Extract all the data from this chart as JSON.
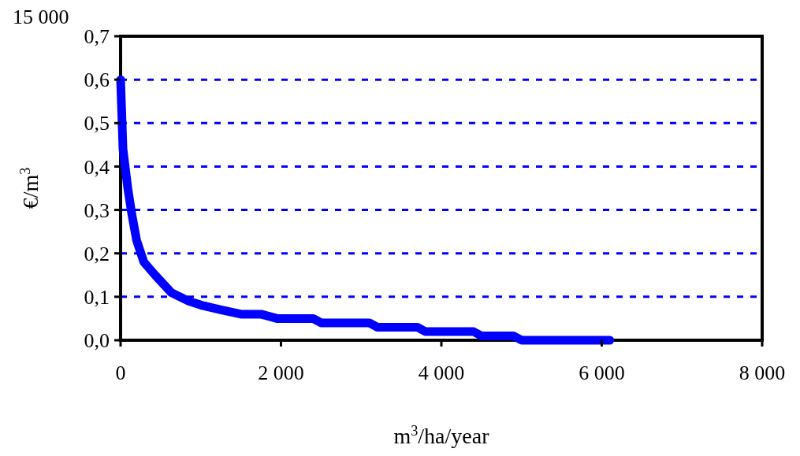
{
  "chart_data": {
    "type": "line",
    "xlabel": "m$^{3}$/ha/year",
    "ylabel": "€/m$^{3}$",
    "annotations": [
      "15 000"
    ],
    "x": [
      0,
      30,
      90,
      140,
      200,
      290,
      430,
      630,
      850,
      1020,
      1250,
      1500,
      1750,
      1850,
      1950,
      2400,
      2500,
      3100,
      3200,
      3700,
      3800,
      4400,
      4500,
      4900,
      5000,
      5600,
      6100
    ],
    "series": [
      {
        "color": "#0000ff",
        "values": [
          0.6,
          0.44,
          0.35,
          0.29,
          0.23,
          0.18,
          0.15,
          0.11,
          0.09,
          0.08,
          0.07,
          0.06,
          0.06,
          0.055,
          0.05,
          0.05,
          0.04,
          0.04,
          0.03,
          0.03,
          0.02,
          0.02,
          0.01,
          0.01,
          0.0,
          0.0,
          0.0
        ]
      }
    ],
    "xlim": [
      0,
      8000
    ],
    "xticks": [
      {
        "value": 0,
        "label": "0"
      },
      {
        "value": 2000,
        "label": "2 000"
      },
      {
        "value": 4000,
        "label": "4 000"
      },
      {
        "value": 6000,
        "label": "6 000"
      },
      {
        "value": 8000,
        "label": "8 000"
      }
    ],
    "ylim": [
      0,
      0.7
    ],
    "yticks": [
      {
        "value": 0,
        "label": "0,0"
      },
      {
        "value": 0.1,
        "label": "0,1"
      },
      {
        "value": 0.2,
        "label": "0,2"
      },
      {
        "value": 0.3,
        "label": "0,3"
      },
      {
        "value": 0.4,
        "label": "0,4"
      },
      {
        "value": 0.5,
        "label": "0,5"
      },
      {
        "value": 0.6,
        "label": "0,6"
      },
      {
        "value": 0.7,
        "label": "0,7"
      }
    ],
    "grid": "y",
    "marker": "none",
    "line_style": "solid"
  }
}
